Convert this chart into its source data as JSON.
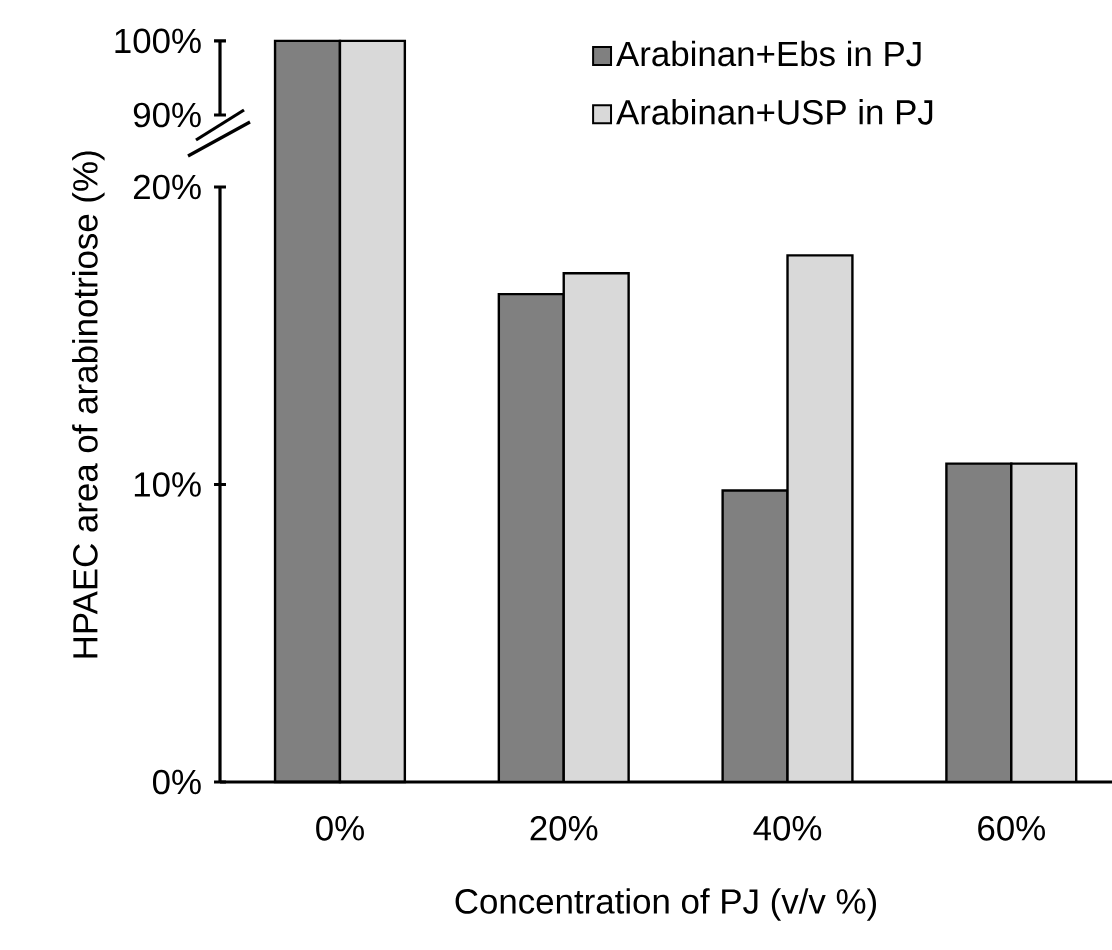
{
  "chart_data": [
    {
      "type": "bar",
      "categories": [
        null
      ],
      "series": [
        {
          "color": "#808080",
          "values": [
            100
          ]
        },
        {
          "color": "#d9d9d9",
          "values": [
            100
          ]
        }
      ],
      "ylim": [
        90,
        100
      ],
      "yticks": [
        {
          "value": 90,
          "label": "90%"
        },
        {
          "value": 100,
          "label": "100%"
        }
      ],
      "tick_labels": "y"
    },
    {
      "type": "bar",
      "categories": [
        "0%",
        "20%",
        "40%",
        "60%"
      ],
      "series": [
        {
          "name": "Arabinan+Ebs in PJ",
          "color": "#808080",
          "values": [
            null,
            16.4,
            9.8,
            10.7
          ]
        },
        {
          "name": "Arabinan+USP in PJ",
          "color": "#d9d9d9",
          "values": [
            null,
            17.1,
            17.7,
            10.7
          ]
        }
      ],
      "ylim": [
        0,
        20
      ],
      "yticks": [
        {
          "value": 0,
          "label": "0%"
        },
        {
          "value": 10,
          "label": "10%"
        },
        {
          "value": 20,
          "label": "20%"
        }
      ],
      "legend": "top right",
      "xlabel": "Concentration of PJ (v/v %)",
      "ylabel": "HPAEC area of arabinotriose (%)"
    }
  ]
}
